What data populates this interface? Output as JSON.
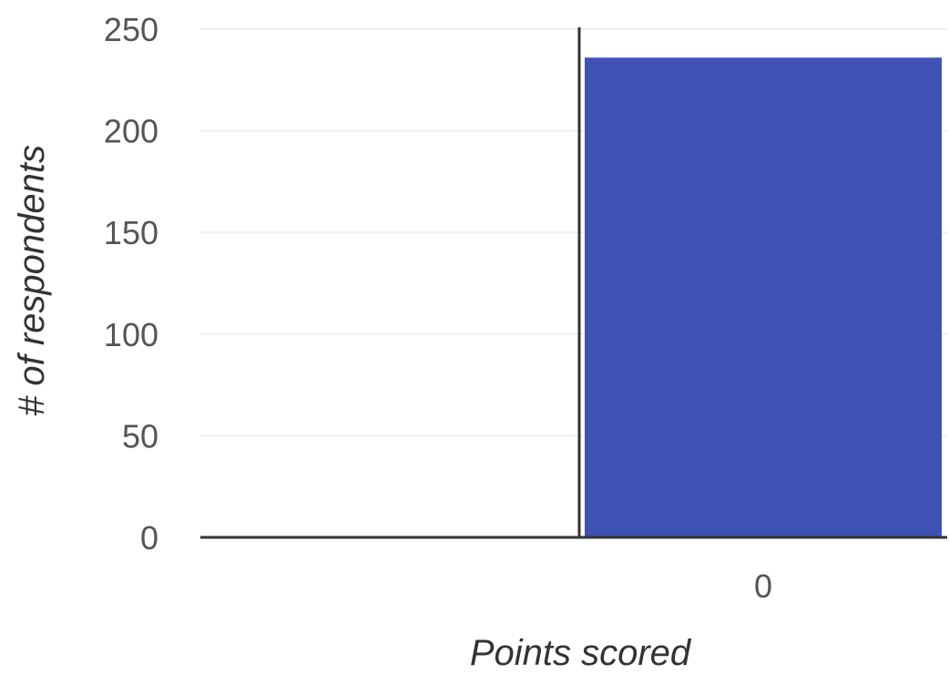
{
  "chart_data": {
    "type": "bar",
    "title": "",
    "xlabel": "Points scored",
    "ylabel": "# of respondents",
    "categories": [
      "0"
    ],
    "values": [
      236
    ],
    "ylim": [
      0,
      250
    ],
    "y_ticks": [
      0,
      50,
      100,
      150,
      200,
      250
    ],
    "x_ticks": [
      "0"
    ],
    "grid": true,
    "legend": "none",
    "colors": {
      "bar": "#3f51b5",
      "axis": "#333333",
      "grid": "#eeeeee"
    }
  }
}
